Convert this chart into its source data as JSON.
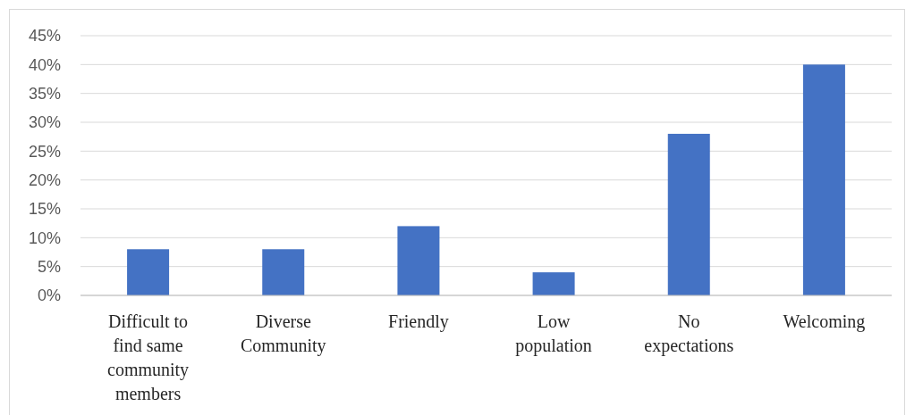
{
  "chart_data": {
    "type": "bar",
    "categories": [
      "Difficult to find same community members",
      "Diverse Community",
      "Friendly",
      "Low population",
      "No expectations",
      "Welcoming"
    ],
    "values": [
      8,
      8,
      12,
      4,
      28,
      40
    ],
    "color": "#4472c4",
    "ylim": [
      0,
      45
    ],
    "yticks": [
      {
        "value": 0,
        "label": "0%"
      },
      {
        "value": 5,
        "label": "5%"
      },
      {
        "value": 10,
        "label": "10%"
      },
      {
        "value": 15,
        "label": "15%"
      },
      {
        "value": 20,
        "label": "20%"
      },
      {
        "value": 25,
        "label": "25%"
      },
      {
        "value": 30,
        "label": "30%"
      },
      {
        "value": 35,
        "label": "35%"
      },
      {
        "value": 40,
        "label": "40%"
      },
      {
        "value": 45,
        "label": "45%"
      }
    ],
    "grid": "y"
  }
}
